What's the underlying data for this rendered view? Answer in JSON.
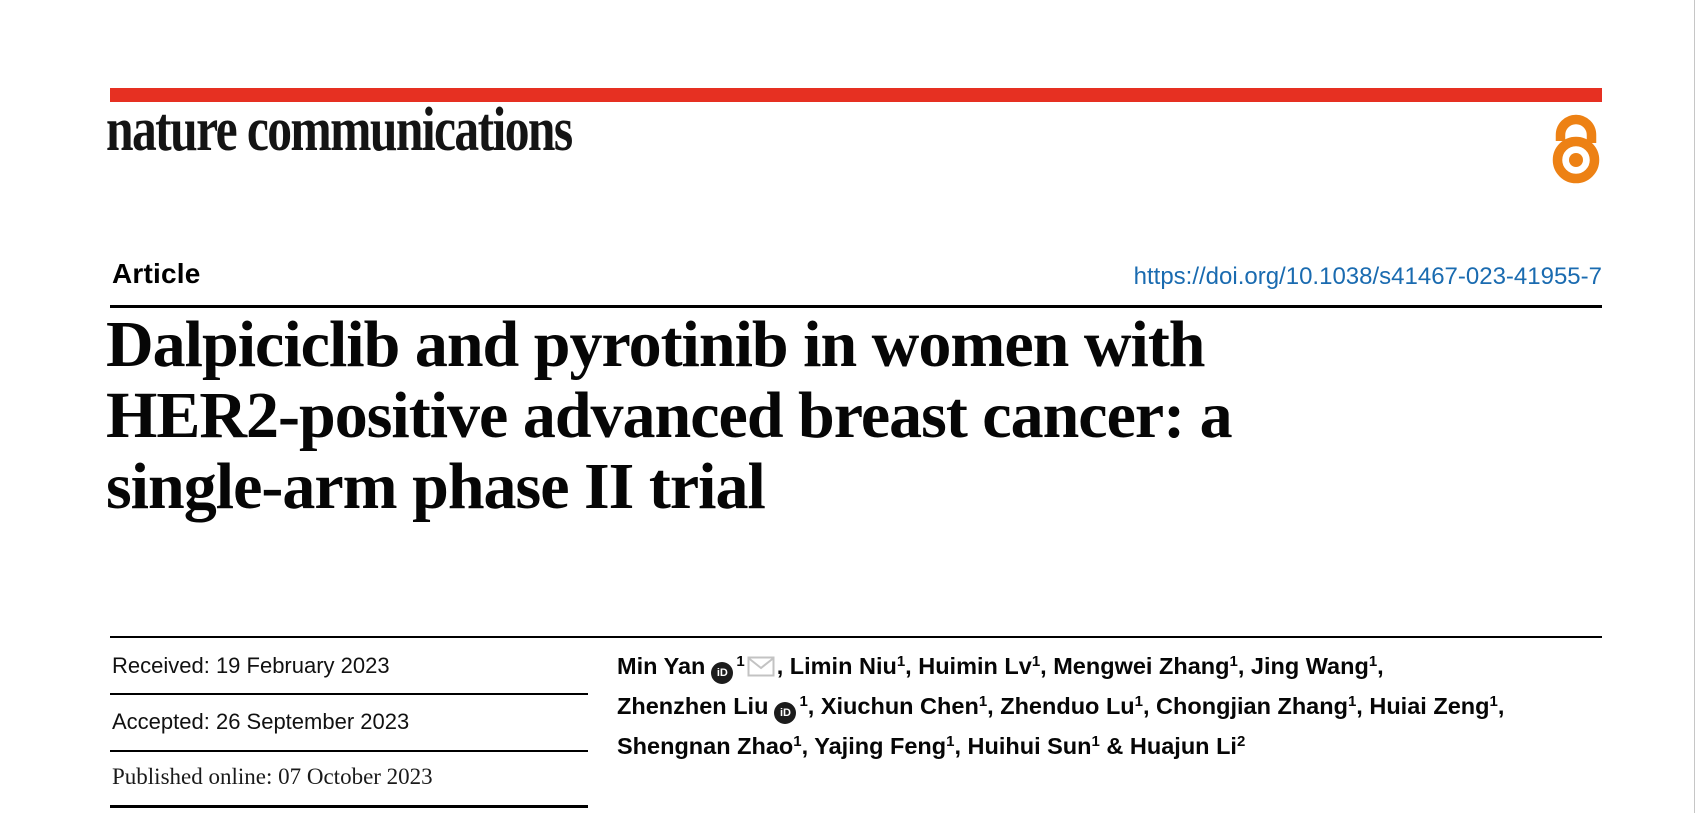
{
  "journal": {
    "name": "nature communications",
    "accent_red": "#e63022",
    "open_access_color": "#ed8114",
    "open_access_icon": "open-padlock"
  },
  "article": {
    "type_label": "Article",
    "doi": "https://doi.org/10.1038/s41467-023-41955-7",
    "doi_color": "#1a6bb0",
    "title_lines": [
      "Dalpiciclib and pyrotinib in women with",
      "HER2-positive advanced breast cancer: a",
      "single-arm phase II trial"
    ]
  },
  "dates": {
    "received": "Received: 19 February 2023",
    "accepted": "Accepted: 26 September 2023",
    "published": "Published online: 07 October 2023"
  },
  "icons": {
    "orcid_label": "iD"
  },
  "authors": {
    "lines": [
      [
        {
          "t": "Min Yan"
        },
        {
          "i": "orcid"
        },
        {
          "s": "1"
        },
        {
          "i": "mail"
        },
        {
          "t": ", Limin Niu"
        },
        {
          "s": "1"
        },
        {
          "t": ", Huimin Lv"
        },
        {
          "s": "1"
        },
        {
          "t": ", Mengwei Zhang"
        },
        {
          "s": "1"
        },
        {
          "t": ", Jing Wang"
        },
        {
          "s": "1"
        },
        {
          "t": ","
        }
      ],
      [
        {
          "t": "Zhenzhen Liu"
        },
        {
          "i": "orcid"
        },
        {
          "s": "1"
        },
        {
          "t": ", Xiuchun Chen"
        },
        {
          "s": "1"
        },
        {
          "t": ", Zhenduo Lu"
        },
        {
          "s": "1"
        },
        {
          "t": ", Chongjian Zhang"
        },
        {
          "s": "1"
        },
        {
          "t": ", Huiai Zeng"
        },
        {
          "s": "1"
        },
        {
          "t": ","
        }
      ],
      [
        {
          "t": "Shengnan Zhao"
        },
        {
          "s": "1"
        },
        {
          "t": ", Yajing Feng"
        },
        {
          "s": "1"
        },
        {
          "t": ", Huihui Sun"
        },
        {
          "s": "1"
        },
        {
          "t": " & Huajun Li"
        },
        {
          "s": "2"
        }
      ]
    ]
  }
}
